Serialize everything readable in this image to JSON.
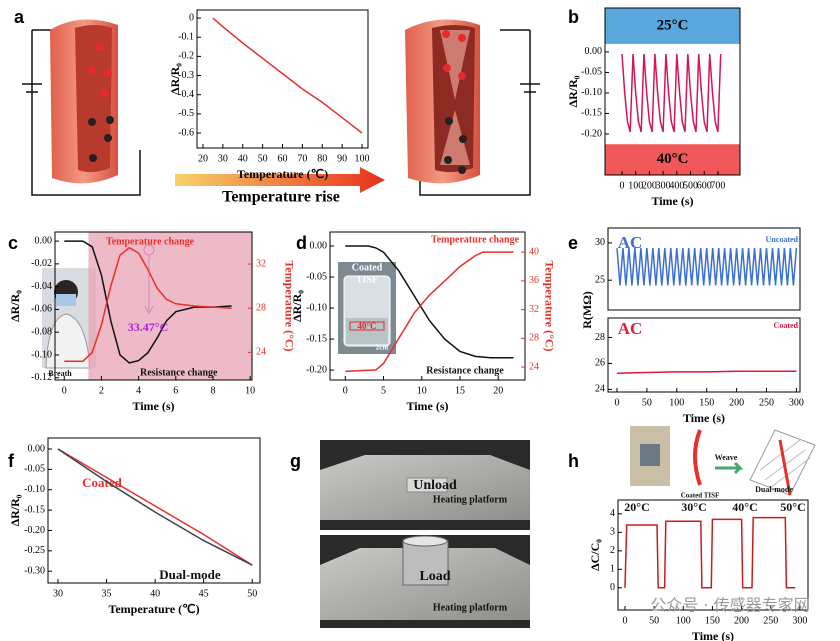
{
  "chart_data": [
    {
      "panel": "a",
      "type": "line",
      "xlabel": "Temperature (℃)",
      "ylabel": "ΔR/R₀",
      "xlim": [
        17,
        103
      ],
      "ylim": [
        -0.678,
        0.042
      ],
      "xticks": [
        20,
        30,
        40,
        50,
        60,
        70,
        80,
        90,
        100
      ],
      "yticks": [
        0,
        -0.1,
        -0.2,
        -0.3,
        -0.4,
        -0.5,
        -0.6
      ],
      "series": [
        {
          "color": "#e8302a",
          "x": [
            25,
            30,
            40,
            50,
            60,
            70,
            80,
            90,
            100
          ],
          "values": [
            0,
            -0.045,
            -0.13,
            -0.21,
            -0.29,
            -0.37,
            -0.44,
            -0.52,
            -0.6
          ]
        }
      ]
    },
    {
      "panel": "b",
      "type": "line",
      "xlabel": "Time (s)",
      "ylabel": "ΔR/R₀",
      "xlim": [
        -124,
        861
      ],
      "ylim": [
        -0.3,
        0.107
      ],
      "xticks": [
        0,
        100,
        200,
        300,
        400,
        500,
        600,
        700
      ],
      "yticks": [
        {
          "value": 0,
          "label": "0.00"
        },
        {
          "value": -0.05,
          "label": "-0.05"
        },
        {
          "value": -0.1,
          "label": "-0.10"
        },
        {
          "value": -0.15,
          "label": "-0.15"
        },
        {
          "value": -0.2,
          "label": "-0.20"
        }
      ],
      "bands": [
        {
          "label": "25°C",
          "color": "#5aa7dd",
          "range": [
            0.0195,
            0.107
          ]
        },
        {
          "label": "40°C",
          "color": "#f0585a",
          "range": [
            -0.3,
            -0.225
          ]
        }
      ],
      "series": [
        {
          "color": "#d4145a",
          "x": [
            0,
            20,
            40,
            60,
            80,
            100,
            120,
            140,
            160,
            180,
            200,
            220,
            240,
            260,
            280,
            300,
            320,
            340,
            360,
            380,
            400,
            420,
            440,
            460,
            480,
            500,
            520,
            540,
            560,
            580,
            600,
            620,
            640,
            660,
            680,
            700,
            720
          ],
          "values": [
            -0.005,
            -0.1,
            -0.17,
            -0.195,
            -0.005,
            -0.1,
            -0.17,
            -0.195,
            -0.005,
            -0.1,
            -0.17,
            -0.195,
            -0.005,
            -0.1,
            -0.17,
            -0.195,
            -0.005,
            -0.1,
            -0.17,
            -0.195,
            -0.005,
            -0.1,
            -0.17,
            -0.195,
            -0.005,
            -0.1,
            -0.17,
            -0.195,
            -0.005,
            -0.1,
            -0.17,
            -0.195,
            -0.005,
            -0.1,
            -0.17,
            -0.195,
            -0.005
          ]
        }
      ]
    },
    {
      "panel": "c",
      "type": "line",
      "xlabel": "Time (s)",
      "ylabel": "ΔR/R₀",
      "y2label": "Temperature (°C)",
      "xlim": [
        -0.5,
        10.1
      ],
      "ylim": [
        -0.122,
        0.008
      ],
      "y2lim": [
        21.5,
        34.9
      ],
      "xticks": [
        0,
        2,
        4,
        6,
        8,
        10
      ],
      "yticks": [
        {
          "value": 0,
          "label": "0.00"
        },
        {
          "value": -0.02,
          "label": "-0.02"
        },
        {
          "value": -0.04,
          "label": "-0.04"
        },
        {
          "value": -0.06,
          "label": "-0.06"
        },
        {
          "value": -0.08,
          "label": "-0.08"
        },
        {
          "value": -0.1,
          "label": "-0.10"
        },
        {
          "value": -0.12,
          "label": "-0.12"
        }
      ],
      "y2ticks": [
        24,
        28,
        32
      ],
      "shaded_xrange": [
        1.3,
        10.1
      ],
      "annotations": [
        "33.47°C",
        "Breath"
      ],
      "series": [
        {
          "name": "Resistance change",
          "color": "#111111",
          "x": [
            0,
            1,
            1.5,
            2,
            2.5,
            3,
            3.5,
            4,
            4.5,
            5,
            5.5,
            6,
            7,
            8,
            9
          ],
          "values": [
            0,
            0,
            -0.005,
            -0.03,
            -0.07,
            -0.1,
            -0.107,
            -0.105,
            -0.098,
            -0.085,
            -0.07,
            -0.062,
            -0.058,
            -0.058,
            -0.057
          ]
        },
        {
          "name": "Temperature change",
          "color": "#e8302a",
          "axis": "y2",
          "x": [
            0,
            1,
            1.5,
            2,
            2.5,
            3,
            3.5,
            4,
            4.5,
            5,
            5.5,
            6,
            7,
            8,
            9
          ],
          "values": [
            23.2,
            23.2,
            24,
            26.5,
            30,
            32.8,
            33.47,
            33,
            31.5,
            29.8,
            28.8,
            28.4,
            28.2,
            28.1,
            28
          ]
        }
      ]
    },
    {
      "panel": "d",
      "type": "line",
      "xlabel": "Time (s)",
      "ylabel": "ΔR/R₀",
      "y2label": "Temperature (°C)",
      "xlim": [
        -2,
        23.5
      ],
      "ylim": [
        -0.216,
        0.0226
      ],
      "y2lim": [
        22.2,
        42.8
      ],
      "xticks": [
        0,
        5,
        10,
        15,
        20
      ],
      "yticks": [
        {
          "value": 0,
          "label": "0.00"
        },
        {
          "value": -0.05,
          "label": "-0.05"
        },
        {
          "value": -0.1,
          "label": "-0.10"
        },
        {
          "value": -0.15,
          "label": "-0.15"
        },
        {
          "value": -0.2,
          "label": "-0.20"
        }
      ],
      "y2ticks": [
        24,
        28,
        32,
        36,
        40
      ],
      "annotations": [
        "Coated",
        "TISF",
        "40°C",
        "2cm"
      ],
      "series": [
        {
          "name": "Resistance change",
          "color": "#111111",
          "x": [
            0,
            3,
            4,
            5,
            7,
            9,
            11,
            13,
            15,
            17,
            19,
            21,
            22
          ],
          "values": [
            0,
            0,
            -0.003,
            -0.01,
            -0.04,
            -0.08,
            -0.12,
            -0.15,
            -0.17,
            -0.178,
            -0.18,
            -0.18,
            -0.18
          ]
        },
        {
          "name": "Temperature change",
          "color": "#e8302a",
          "axis": "y2",
          "x": [
            0,
            4,
            5,
            7,
            9,
            11,
            13,
            15,
            17,
            18,
            19,
            21,
            22
          ],
          "values": [
            23.4,
            23.6,
            24.5,
            28,
            31.5,
            34,
            36,
            38,
            39.5,
            40,
            40,
            40,
            40
          ]
        }
      ]
    },
    {
      "panel": "e",
      "type": "line",
      "ylabel": "R(MΩ)",
      "xlim": [
        -15,
        306
      ],
      "ylim": [
        21,
        32
      ],
      "yticks": [
        25,
        30
      ],
      "annotations": [
        "AC"
      ],
      "series": [
        {
          "name": "Uncoated",
          "color": "#3a6fd8",
          "x": [
            0,
            5,
            10,
            15,
            20,
            25,
            30,
            35,
            40,
            45,
            50,
            55,
            60,
            65,
            70,
            75,
            80,
            85,
            90,
            95,
            100,
            105,
            110,
            115,
            120,
            125,
            130,
            135,
            140,
            145,
            150,
            155,
            160,
            165,
            170,
            175,
            180,
            185,
            190,
            195,
            200,
            205,
            210,
            215,
            220,
            225,
            230,
            235,
            240,
            245,
            250,
            255,
            260,
            265,
            270,
            275,
            280,
            285,
            290,
            295,
            300
          ],
          "values": [
            29.3,
            24.3,
            29.3,
            24.3,
            29.3,
            24.3,
            29.3,
            24.3,
            29.3,
            24.3,
            29.3,
            24.3,
            29.3,
            24.3,
            29.3,
            24.3,
            29.3,
            24.3,
            29.3,
            24.3,
            29.3,
            24.3,
            29.3,
            24.3,
            29.3,
            24.3,
            29.3,
            24.3,
            29.3,
            24.3,
            29.3,
            24.3,
            29.3,
            24.3,
            29.3,
            24.3,
            29.3,
            24.3,
            29.3,
            24.3,
            29.3,
            24.3,
            29.3,
            24.3,
            29.3,
            24.3,
            29.3,
            24.3,
            29.3,
            24.3,
            29.3,
            24.3,
            29.3,
            24.3,
            29.3,
            24.3,
            29.3,
            24.3,
            29.3,
            24.3,
            29.3
          ]
        }
      ]
    },
    {
      "type": "line",
      "xlabel": "Time (s)",
      "xlim": [
        -15,
        306
      ],
      "ylim": [
        23.8,
        29.5
      ],
      "xticks": [
        0,
        50,
        100,
        150,
        200,
        250,
        300
      ],
      "yticks": [
        24,
        26,
        28
      ],
      "annotations": [
        "AC"
      ],
      "series": [
        {
          "name": "Coated",
          "color": "#d9183b",
          "x": [
            0,
            50,
            100,
            150,
            200,
            250,
            300
          ],
          "values": [
            25.25,
            25.3,
            25.35,
            25.35,
            25.4,
            25.4,
            25.4
          ]
        }
      ]
    },
    {
      "panel": "f",
      "type": "line",
      "xlabel": "Temperature (℃)",
      "ylabel": "ΔR/R₀",
      "xlim": [
        28.97,
        50.8
      ],
      "ylim": [
        -0.329,
        0.027
      ],
      "xticks": [
        30,
        35,
        40,
        45,
        50
      ],
      "yticks": [
        {
          "value": 0,
          "label": "0.00"
        },
        {
          "value": -0.05,
          "label": "-0.05"
        },
        {
          "value": -0.1,
          "label": "-0.10"
        },
        {
          "value": -0.15,
          "label": "-0.15"
        },
        {
          "value": -0.2,
          "label": "-0.20"
        },
        {
          "value": -0.25,
          "label": "-0.25"
        },
        {
          "value": -0.3,
          "label": "-0.30"
        }
      ],
      "series": [
        {
          "name": "Coated",
          "color": "#e8302a",
          "x": [
            30,
            35,
            40,
            45,
            50
          ],
          "values": [
            0,
            -0.07,
            -0.14,
            -0.21,
            -0.285
          ]
        },
        {
          "name": "Dual-mode",
          "color": "#3d4250",
          "x": [
            30,
            35,
            40,
            45,
            50
          ],
          "values": [
            0,
            -0.08,
            -0.155,
            -0.225,
            -0.285
          ]
        }
      ]
    },
    {
      "panel": "h",
      "type": "line",
      "xlabel": "Time (s)",
      "ylabel": "ΔC/C₀",
      "xlim": [
        -12,
        314
      ],
      "ylim": [
        -1.2,
        4.75
      ],
      "xticks": [
        0,
        50,
        100,
        150,
        200,
        250,
        300
      ],
      "yticks": [
        0,
        1,
        2,
        3,
        4
      ],
      "annotations": [
        "20°C",
        "30°C",
        "40°C",
        "50°C",
        "Weave",
        "Coated TISF",
        "Dual-mode"
      ],
      "series": [
        {
          "color": "#c81e1e",
          "x": [
            0,
            3,
            55,
            57,
            68,
            70,
            130,
            132,
            148,
            150,
            200,
            202,
            218,
            220,
            275,
            277,
            292
          ],
          "values": [
            0,
            3.4,
            3.4,
            0,
            0,
            3.6,
            3.6,
            0,
            0,
            3.7,
            3.7,
            0,
            0,
            3.8,
            3.8,
            0,
            0
          ]
        }
      ]
    }
  ],
  "panel_a_caption": "Temperature rise",
  "panel_g": {
    "label": "g",
    "texts": [
      "Unload",
      "Heating platform",
      "Load",
      "Heating platform"
    ]
  },
  "watermark": "公众号 · 传感器专家网"
}
